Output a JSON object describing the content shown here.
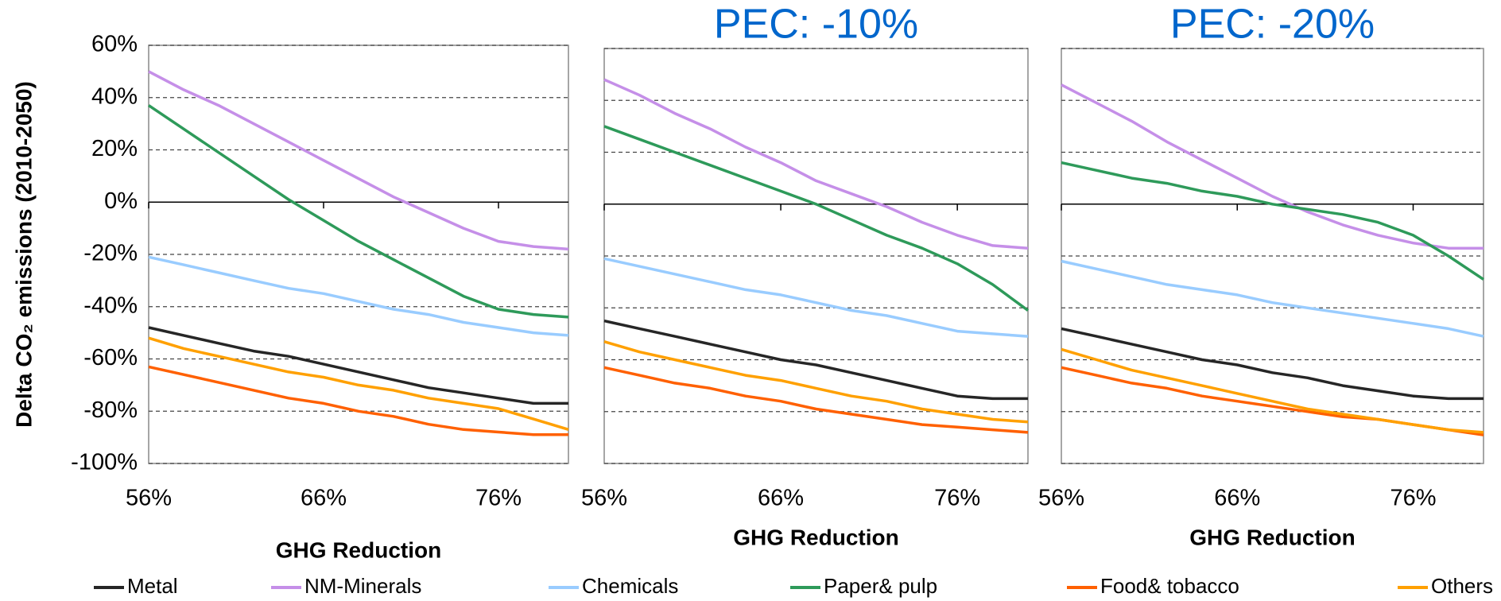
{
  "chart_data": [
    {
      "type": "line",
      "ylabel": "Delta CO₂ emissions  (2010-2050)",
      "xlabel": "GHG Reduction",
      "x": [
        56,
        58,
        60,
        62,
        64,
        66,
        68,
        70,
        72,
        74,
        76,
        78,
        80
      ],
      "xlim": [
        56,
        80
      ],
      "ylim": [
        -100,
        60
      ],
      "xticks": [
        {
          "value": 56,
          "label": "56%"
        },
        {
          "value": 66,
          "label": "66%"
        },
        {
          "value": 76,
          "label": "76%"
        }
      ],
      "yticks": [
        {
          "value": 60,
          "label": "60%"
        },
        {
          "value": 40,
          "label": "40%"
        },
        {
          "value": 20,
          "label": "20%"
        },
        {
          "value": 0,
          "label": "0%"
        },
        {
          "value": -20,
          "label": "-20%"
        },
        {
          "value": -40,
          "label": "-40%"
        },
        {
          "value": -60,
          "label": "-60%"
        },
        {
          "value": -80,
          "label": "-80%"
        },
        {
          "value": -100,
          "label": "-100%"
        }
      ],
      "grid": true,
      "legend": "bottom",
      "series": [
        {
          "name": "Metal",
          "color": "#262626",
          "values": [
            -48,
            -51,
            -54,
            -57,
            -59,
            -62,
            -65,
            -68,
            -71,
            -73,
            -75,
            -77,
            -77
          ]
        },
        {
          "name": "NM-Minerals",
          "color": "#c58fe8",
          "values": [
            50,
            43,
            37,
            30,
            23,
            16,
            9,
            2,
            -4,
            -10,
            -15,
            -17,
            -18
          ]
        },
        {
          "name": "Chemicals",
          "color": "#99ccff",
          "values": [
            -21,
            -24,
            -27,
            -30,
            -33,
            -35,
            -38,
            -41,
            -43,
            -46,
            -48,
            -50,
            -51
          ]
        },
        {
          "name": "Paper& pulp",
          "color": "#2e9a5a",
          "values": [
            37,
            28,
            19,
            10,
            1,
            -7,
            -15,
            -22,
            -29,
            -36,
            -41,
            -43,
            -44
          ]
        },
        {
          "name": "Food& tobacco",
          "color": "#ff6000",
          "values": [
            -63,
            -66,
            -69,
            -72,
            -75,
            -77,
            -80,
            -82,
            -85,
            -87,
            -88,
            -89,
            -89
          ]
        },
        {
          "name": "Others",
          "color": "#ffa000",
          "values": [
            -52,
            -56,
            -59,
            -62,
            -65,
            -67,
            -70,
            -72,
            -75,
            -77,
            -79,
            -83,
            -87
          ]
        }
      ]
    },
    {
      "type": "line",
      "title": "PEC: -10%",
      "xlabel": "GHG Reduction",
      "x": [
        56,
        58,
        60,
        62,
        64,
        66,
        68,
        70,
        72,
        74,
        76,
        78,
        80
      ],
      "xlim": [
        56,
        80
      ],
      "ylim": [
        -100,
        60
      ],
      "xticks": [
        {
          "value": 56,
          "label": "56%"
        },
        {
          "value": 66,
          "label": "66%"
        },
        {
          "value": 76,
          "label": "76%"
        }
      ],
      "yticks": [
        60,
        40,
        20,
        0,
        -20,
        -40,
        -60,
        -80,
        -100
      ],
      "ytick_labels": false,
      "grid": true,
      "series": [
        {
          "color": "#262626",
          "values": [
            -45,
            -48,
            -51,
            -54,
            -57,
            -60,
            -62,
            -65,
            -68,
            -71,
            -74,
            -75,
            -75
          ]
        },
        {
          "color": "#c58fe8",
          "values": [
            48,
            42,
            35,
            29,
            22,
            16,
            9,
            4,
            -1,
            -7,
            -12,
            -16,
            -17
          ]
        },
        {
          "color": "#99ccff",
          "values": [
            -21,
            -24,
            -27,
            -30,
            -33,
            -35,
            -38,
            -41,
            -43,
            -46,
            -49,
            -50,
            -51
          ]
        },
        {
          "color": "#2e9a5a",
          "values": [
            30,
            25,
            20,
            15,
            10,
            5,
            0,
            -6,
            -12,
            -17,
            -23,
            -31,
            -41
          ]
        },
        {
          "color": "#ff6000",
          "values": [
            -63,
            -66,
            -69,
            -71,
            -74,
            -76,
            -79,
            -81,
            -83,
            -85,
            -86,
            -87,
            -88
          ]
        },
        {
          "color": "#ffa000",
          "values": [
            -53,
            -57,
            -60,
            -63,
            -66,
            -68,
            -71,
            -74,
            -76,
            -79,
            -81,
            -83,
            -84
          ]
        }
      ]
    },
    {
      "type": "line",
      "title": "PEC: -20%",
      "xlabel": "GHG Reduction",
      "x": [
        56,
        58,
        60,
        62,
        64,
        66,
        68,
        70,
        72,
        74,
        76,
        78,
        80
      ],
      "xlim": [
        56,
        80
      ],
      "ylim": [
        -100,
        60
      ],
      "xticks": [
        {
          "value": 56,
          "label": "56%"
        },
        {
          "value": 66,
          "label": "66%"
        },
        {
          "value": 76,
          "label": "76%"
        }
      ],
      "yticks": [
        60,
        40,
        20,
        0,
        -20,
        -40,
        -60,
        -80,
        -100
      ],
      "ytick_labels": false,
      "grid": true,
      "series": [
        {
          "color": "#262626",
          "values": [
            -48,
            -51,
            -54,
            -57,
            -60,
            -62,
            -65,
            -67,
            -70,
            -72,
            -74,
            -75,
            -75
          ]
        },
        {
          "color": "#c58fe8",
          "values": [
            46,
            39,
            32,
            24,
            17,
            10,
            3,
            -3,
            -8,
            -12,
            -15,
            -17,
            -17
          ]
        },
        {
          "color": "#99ccff",
          "values": [
            -22,
            -25,
            -28,
            -31,
            -33,
            -35,
            -38,
            -40,
            -42,
            -44,
            -46,
            -48,
            -51
          ]
        },
        {
          "color": "#2e9a5a",
          "values": [
            16,
            13,
            10,
            8,
            5,
            3,
            0,
            -2,
            -4,
            -7,
            -12,
            -20,
            -29
          ]
        },
        {
          "color": "#ff6000",
          "values": [
            -63,
            -66,
            -69,
            -71,
            -74,
            -76,
            -78,
            -80,
            -82,
            -83,
            -85,
            -87,
            -89
          ]
        },
        {
          "color": "#ffa000",
          "values": [
            -56,
            -60,
            -64,
            -67,
            -70,
            -73,
            -76,
            -79,
            -81,
            -83,
            -85,
            -87,
            -88
          ]
        }
      ]
    }
  ]
}
